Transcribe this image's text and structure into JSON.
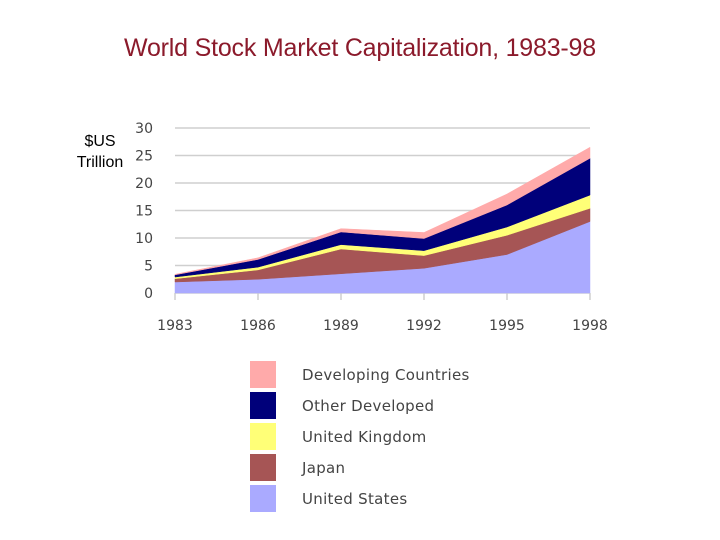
{
  "chart_data": {
    "type": "area",
    "stacked": true,
    "title": "World Stock Market Capitalization, 1983-98",
    "ylabel_line1": "$US",
    "ylabel_line2": "Trillion",
    "xlabel": "",
    "ylim": [
      0,
      30
    ],
    "y_ticks": [
      0,
      5,
      10,
      15,
      20,
      25,
      30
    ],
    "x": [
      1983,
      1986,
      1989,
      1992,
      1995,
      1998
    ],
    "x_tick_labels": [
      "1983",
      "1986",
      "1989",
      "1992",
      "1995",
      "1998"
    ],
    "grid": true,
    "series": [
      {
        "name": "United States",
        "color": "#aaaaff",
        "values": [
          2.0,
          2.5,
          3.5,
          4.5,
          7.0,
          13.0
        ]
      },
      {
        "name": "Japan",
        "color": "#a65555",
        "values": [
          0.6,
          1.7,
          4.5,
          2.3,
          3.5,
          2.4
        ]
      },
      {
        "name": "United Kingdom",
        "color": "#ffff77",
        "values": [
          0.3,
          0.5,
          0.8,
          0.9,
          1.5,
          2.4
        ]
      },
      {
        "name": "Other Developed",
        "color": "#00007a",
        "values": [
          0.4,
          1.4,
          2.3,
          2.2,
          4.0,
          6.7
        ]
      },
      {
        "name": "Developing Countries",
        "color": "#ffaaaa",
        "values": [
          0.1,
          0.3,
          0.6,
          1.1,
          2.0,
          2.0
        ]
      }
    ],
    "legend": {
      "position": "bottom",
      "order": [
        "Developing Countries",
        "Other Developed",
        "United Kingdom",
        "Japan",
        "United States"
      ]
    }
  }
}
